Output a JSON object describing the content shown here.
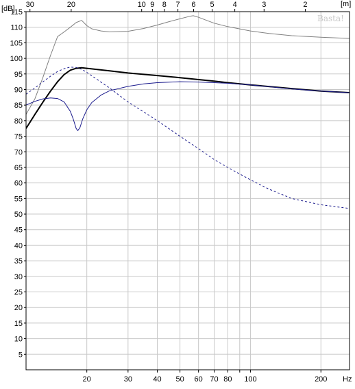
{
  "chart_data": {
    "type": "line",
    "ylabel": "[dB]",
    "xlabel": "Hz",
    "top_axis_label": "[m]",
    "watermark": "Basta!",
    "ylim": [
      0,
      115
    ],
    "x_scale": "log",
    "xlim": [
      11,
      265
    ],
    "grid": true,
    "y_ticks": [
      5,
      10,
      15,
      20,
      25,
      30,
      35,
      40,
      45,
      50,
      55,
      60,
      65,
      70,
      75,
      80,
      85,
      90,
      95,
      100,
      105,
      110,
      115
    ],
    "x_ticks": [
      20,
      30,
      40,
      50,
      60,
      70,
      80,
      100,
      200
    ],
    "x_ticks_labeled": [
      20,
      30,
      40,
      50,
      60,
      70,
      80,
      100,
      200
    ],
    "x_minor_ticks": [
      90
    ],
    "top_ticks": [
      30,
      20,
      10,
      9,
      8,
      7,
      6,
      5,
      4,
      3,
      2
    ],
    "series": [
      {
        "color": "#808080",
        "width": 1,
        "dash": "",
        "points": [
          [
            11,
            82
          ],
          [
            12,
            87
          ],
          [
            13,
            94
          ],
          [
            14,
            101
          ],
          [
            15,
            107
          ],
          [
            16,
            108.5
          ],
          [
            17,
            110
          ],
          [
            18,
            111.5
          ],
          [
            19,
            112.2
          ],
          [
            20,
            110.5
          ],
          [
            21,
            109.5
          ],
          [
            23,
            108.8
          ],
          [
            25,
            108.5
          ],
          [
            30,
            108.7
          ],
          [
            35,
            109.6
          ],
          [
            40,
            110.7
          ],
          [
            45,
            111.8
          ],
          [
            50,
            112.7
          ],
          [
            55,
            113.5
          ],
          [
            57,
            113.7
          ],
          [
            60,
            113.2
          ],
          [
            65,
            112.2
          ],
          [
            70,
            111.3
          ],
          [
            80,
            110.2
          ],
          [
            100,
            108.8
          ],
          [
            120,
            108
          ],
          [
            150,
            107.3
          ],
          [
            200,
            106.8
          ],
          [
            265,
            106.4
          ]
        ]
      },
      {
        "color": "#000000",
        "width": 2,
        "dash": "",
        "points": [
          [
            11,
            77.5
          ],
          [
            12,
            82
          ],
          [
            13,
            86
          ],
          [
            14,
            89.5
          ],
          [
            15,
            92.5
          ],
          [
            16,
            94.8
          ],
          [
            17,
            96.2
          ],
          [
            18,
            96.8
          ],
          [
            19,
            97
          ],
          [
            20,
            96.8
          ],
          [
            25,
            96
          ],
          [
            30,
            95.3
          ],
          [
            40,
            94.5
          ],
          [
            50,
            93.8
          ],
          [
            60,
            93.2
          ],
          [
            70,
            92.7
          ],
          [
            80,
            92.2
          ],
          [
            100,
            91.5
          ],
          [
            150,
            90.3
          ],
          [
            200,
            89.5
          ],
          [
            265,
            89
          ]
        ]
      },
      {
        "color": "#1a1a8c",
        "width": 1,
        "dash": "",
        "points": [
          [
            11,
            85
          ],
          [
            12,
            86.2
          ],
          [
            13,
            87
          ],
          [
            14,
            87.3
          ],
          [
            15,
            87.1
          ],
          [
            16,
            86
          ],
          [
            17,
            83
          ],
          [
            17.5,
            80.5
          ],
          [
            18,
            77.5
          ],
          [
            18.3,
            76.8
          ],
          [
            18.7,
            77.8
          ],
          [
            19.2,
            80.5
          ],
          [
            20,
            83.5
          ],
          [
            21,
            85.8
          ],
          [
            23,
            88.2
          ],
          [
            25,
            89.6
          ],
          [
            30,
            91
          ],
          [
            35,
            91.8
          ],
          [
            40,
            92.2
          ],
          [
            50,
            92.5
          ],
          [
            60,
            92.4
          ],
          [
            70,
            92.2
          ],
          [
            80,
            92
          ],
          [
            100,
            91.5
          ],
          [
            150,
            90.2
          ],
          [
            200,
            89.5
          ],
          [
            265,
            89
          ]
        ]
      },
      {
        "color": "#1a1a8c",
        "width": 1,
        "dash": "3,3",
        "points": [
          [
            11,
            88.5
          ],
          [
            12,
            90.5
          ],
          [
            13,
            92.5
          ],
          [
            14,
            94.3
          ],
          [
            15,
            95.8
          ],
          [
            16,
            96.7
          ],
          [
            17,
            97.2
          ],
          [
            18,
            97.1
          ],
          [
            19,
            96.5
          ],
          [
            20,
            95.5
          ],
          [
            25,
            90.5
          ],
          [
            30,
            86
          ],
          [
            40,
            80
          ],
          [
            50,
            75
          ],
          [
            60,
            71
          ],
          [
            70,
            67.5
          ],
          [
            80,
            65
          ],
          [
            100,
            61
          ],
          [
            120,
            58
          ],
          [
            150,
            55
          ],
          [
            200,
            53
          ],
          [
            265,
            51.8
          ]
        ]
      }
    ]
  }
}
